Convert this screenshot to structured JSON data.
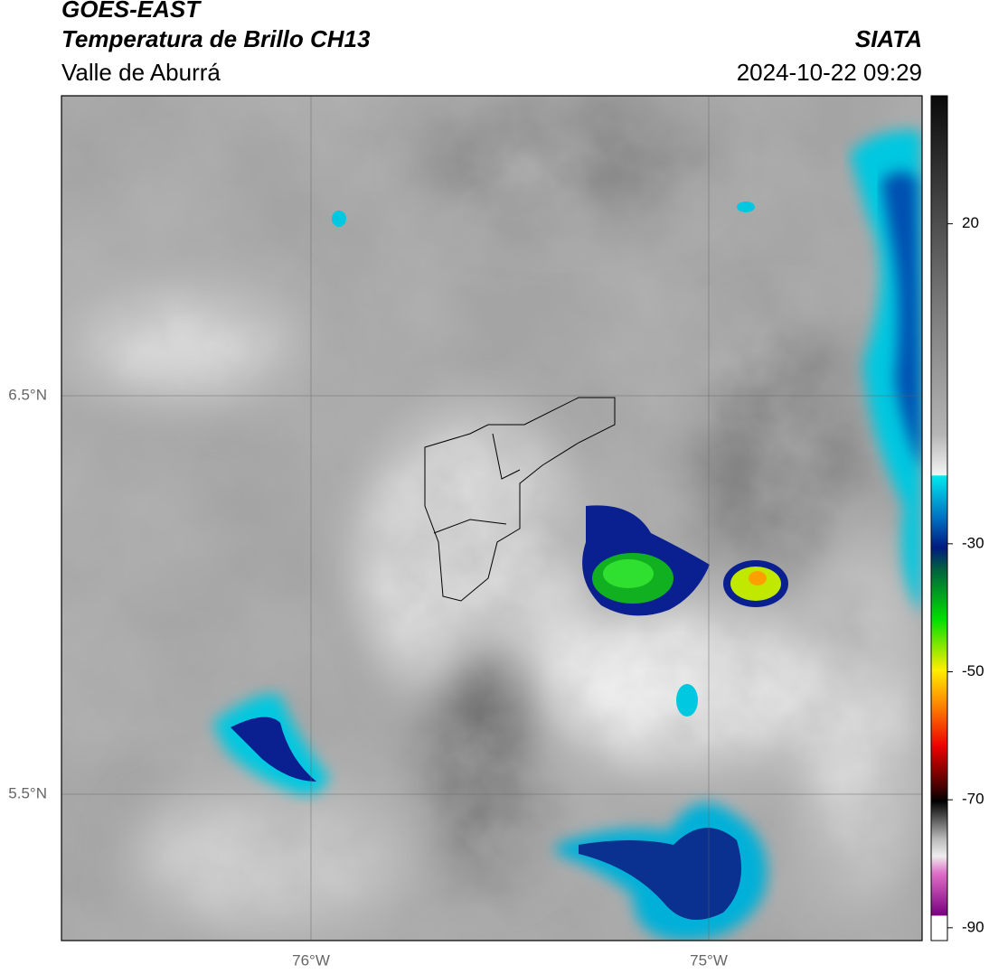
{
  "header": {
    "satellite": "GOES-EAST",
    "product": "Temperatura de Brillo CH13",
    "region": "Valle de Aburrá",
    "source": "SIATA",
    "datetime": "2024-10-22 09:29"
  },
  "map": {
    "lat_labels": [
      "6.5°N",
      "5.5°N"
    ],
    "lon_labels": [
      "76°W",
      "75°W"
    ]
  },
  "colorbar": {
    "range": [
      -92,
      40
    ],
    "ticks": [
      20,
      -30,
      -50,
      -70,
      -90
    ]
  }
}
